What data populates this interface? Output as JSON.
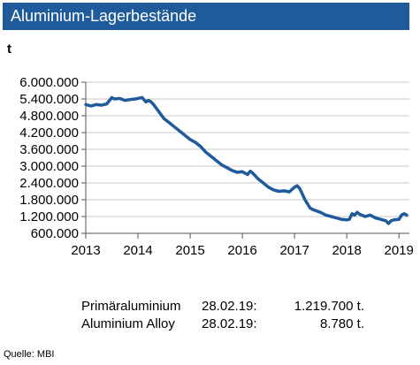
{
  "chart_data": {
    "type": "line",
    "title": "Aluminium-Lagerbestände",
    "ylabel": "t",
    "xlim": [
      2013.0,
      2019.2
    ],
    "ylim": [
      600000,
      6000000
    ],
    "yticks": [
      600000,
      1200000,
      1800000,
      2400000,
      3000000,
      3600000,
      4200000,
      4800000,
      5400000,
      6000000
    ],
    "yticklabels": [
      "600.000",
      "1.200.000",
      "1.800.000",
      "2.400.000",
      "3.000.000",
      "3.600.000",
      "4.200.000",
      "4.800.000",
      "5.400.000",
      "6.000.000"
    ],
    "xticks": [
      2013,
      2014,
      2015,
      2016,
      2017,
      2018,
      2019
    ],
    "xticklabels": [
      "2013",
      "2014",
      "2015",
      "2016",
      "2017",
      "2018",
      "2019"
    ],
    "grid": true,
    "line_color": "#1f5a9a",
    "series": [
      {
        "x": [
          2013.0,
          2013.1,
          2013.2,
          2013.3,
          2013.4,
          2013.5,
          2013.55,
          2013.65,
          2013.75,
          2013.85,
          2013.95,
          2014.0,
          2014.08,
          2014.15,
          2014.2,
          2014.25,
          2014.3,
          2014.4,
          2014.5,
          2014.6,
          2014.7,
          2014.8,
          2014.9,
          2015.0,
          2015.1,
          2015.2,
          2015.3,
          2015.4,
          2015.5,
          2015.6,
          2015.7,
          2015.8,
          2015.9,
          2016.0,
          2016.1,
          2016.15,
          2016.2,
          2016.3,
          2016.4,
          2016.5,
          2016.6,
          2016.7,
          2016.8,
          2016.9,
          2017.0,
          2017.05,
          2017.1,
          2017.2,
          2017.3,
          2017.35,
          2017.5,
          2017.6,
          2017.7,
          2017.8,
          2017.9,
          2018.0,
          2018.05,
          2018.1,
          2018.15,
          2018.2,
          2018.25,
          2018.35,
          2018.45,
          2018.55,
          2018.65,
          2018.75,
          2018.8,
          2018.85,
          2018.9,
          2019.0,
          2019.05,
          2019.1,
          2019.15
        ],
        "y": [
          5200000,
          5150000,
          5200000,
          5180000,
          5220000,
          5450000,
          5400000,
          5420000,
          5350000,
          5380000,
          5400000,
          5420000,
          5450000,
          5300000,
          5350000,
          5300000,
          5200000,
          4950000,
          4700000,
          4550000,
          4400000,
          4250000,
          4100000,
          3950000,
          3850000,
          3700000,
          3500000,
          3350000,
          3200000,
          3050000,
          2950000,
          2850000,
          2780000,
          2800000,
          2700000,
          2820000,
          2750000,
          2550000,
          2400000,
          2250000,
          2150000,
          2100000,
          2120000,
          2080000,
          2250000,
          2300000,
          2200000,
          1800000,
          1500000,
          1450000,
          1350000,
          1250000,
          1200000,
          1150000,
          1100000,
          1080000,
          1100000,
          1300000,
          1250000,
          1350000,
          1280000,
          1200000,
          1250000,
          1150000,
          1100000,
          1050000,
          950000,
          1050000,
          1080000,
          1100000,
          1250000,
          1300000,
          1250000
        ]
      }
    ]
  },
  "info": {
    "rows": [
      {
        "name": "Primäraluminium",
        "date": "28.02.19:",
        "value": "1.219.700 t."
      },
      {
        "name": "Aluminium Alloy",
        "date": "28.02.19:",
        "value": "8.780 t."
      }
    ]
  },
  "source": "Quelle: MBI"
}
